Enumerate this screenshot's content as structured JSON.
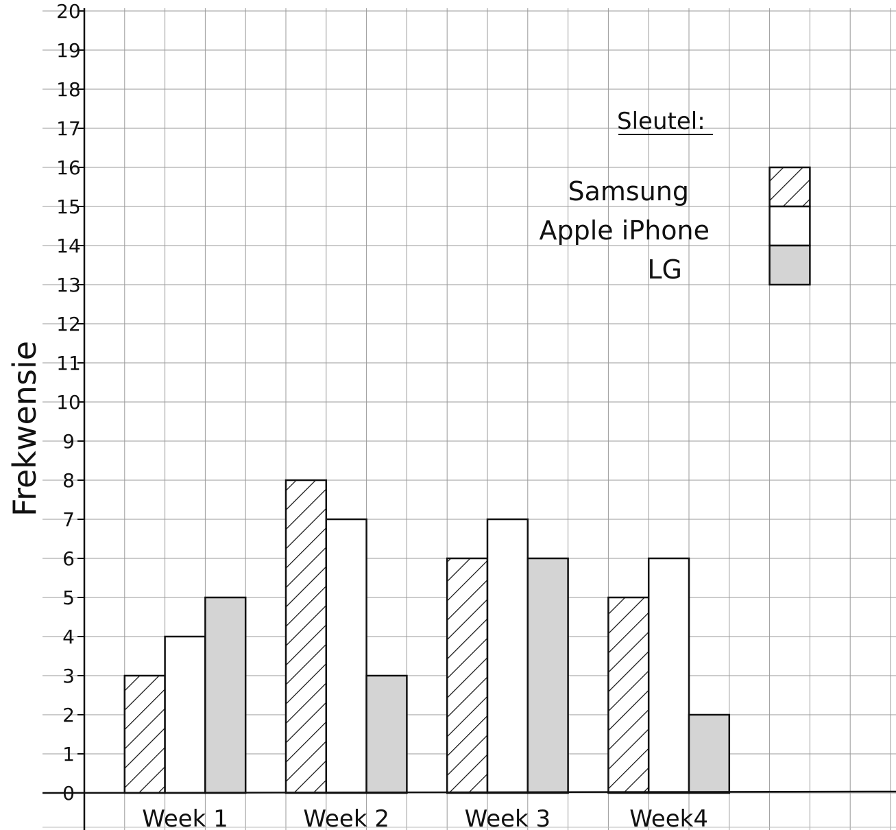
{
  "chart_data": {
    "type": "bar",
    "title": "",
    "xlabel": "",
    "ylabel": "Frekwensie",
    "ylim": [
      0,
      20
    ],
    "yticks": [
      "0",
      "1",
      "2",
      "3",
      "4",
      "5",
      "6",
      "7",
      "8",
      "9",
      "10",
      "11",
      "12",
      "13",
      "14",
      "15",
      "16",
      "17",
      "18",
      "19",
      "20"
    ],
    "categories": [
      "Week 1",
      "Week 2",
      "Week 3",
      "Week4"
    ],
    "series": [
      {
        "name": "Samsung",
        "pattern": "hatch",
        "values": [
          3,
          8,
          6,
          5
        ]
      },
      {
        "name": "Apple iPhone",
        "pattern": "white",
        "values": [
          4,
          7,
          7,
          6
        ]
      },
      {
        "name": "LG",
        "pattern": "grey",
        "values": [
          5,
          3,
          6,
          2
        ]
      }
    ],
    "legend": {
      "title": "Sleutel:",
      "placement": "top-right"
    },
    "grid": true
  }
}
